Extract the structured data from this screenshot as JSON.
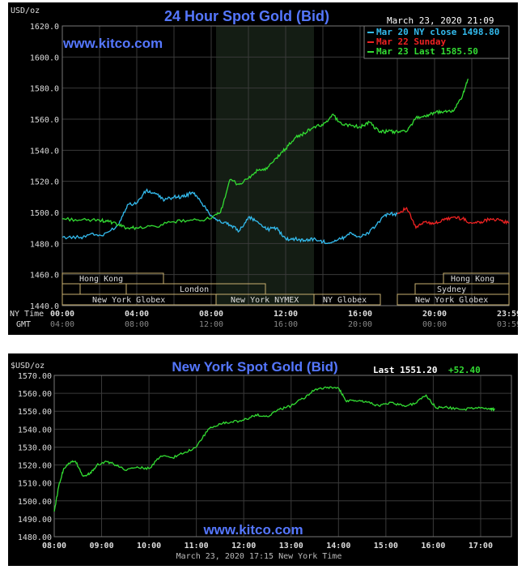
{
  "chart_data": [
    {
      "type": "line",
      "title": "24 Hour Spot Gold (Bid)",
      "unit_label": "USD/oz",
      "watermark": "www.kitco.com",
      "date_label": "March 23, 2020 21:09",
      "ylim": [
        1440,
        1620
      ],
      "y_ticks": [
        "1620.0",
        "1600.0",
        "1580.0",
        "1560.0",
        "1540.0",
        "1520.0",
        "1500.0",
        "1480.0",
        "1460.0",
        "1440.0"
      ],
      "x_ticks_ny": [
        "00:00",
        "04:00",
        "08:00",
        "12:00",
        "16:00",
        "20:00",
        "23:59"
      ],
      "x_ticks_gmt": [
        "04:00",
        "08:00",
        "12:00",
        "16:00",
        "20:00",
        "00:00",
        "03:59"
      ],
      "ny_time_label": "NY Time",
      "gmt_label": "GMT",
      "legend": [
        {
          "text": "Mar 20 NY close 1498.80",
          "color": "#33bbee"
        },
        {
          "text": "Mar 22 Sunday",
          "color": "#ee2222"
        },
        {
          "text": "Mar 23 Last 1585.50",
          "color": "#33dd33"
        }
      ],
      "sessions": [
        "Hong Kong",
        "London",
        "New York Globex",
        "New York NYMEX",
        "NY Globex",
        "Hong Kong",
        "Sydney",
        "New York Globex"
      ],
      "series": [
        {
          "name": "Mar 20 NY close 1498.80",
          "color": "#33bbee",
          "x": [
            0,
            1,
            1.5,
            2.2,
            3,
            3.5,
            4,
            4.5,
            5,
            5.5,
            6,
            6.5,
            7,
            7.5,
            8,
            8.5,
            9,
            9.5,
            10,
            10.5,
            11,
            11.5,
            12,
            12.5,
            13,
            13.5,
            14,
            14.5,
            15,
            15.5,
            16,
            16.5,
            17,
            17.5,
            18
          ],
          "values": [
            1484,
            1484,
            1486,
            1485,
            1492,
            1505,
            1506,
            1514,
            1512,
            1508,
            1510,
            1510,
            1513,
            1506,
            1498,
            1494,
            1492,
            1488,
            1497,
            1494,
            1489,
            1490,
            1483,
            1483,
            1482,
            1483,
            1481,
            1481,
            1483,
            1487,
            1484,
            1487,
            1494,
            1499,
            1499
          ]
        },
        {
          "name": "Mar 22 Sunday",
          "color": "#ee2222",
          "x": [
            18,
            18.5,
            19,
            19.5,
            20,
            20.5,
            21,
            21.5,
            22,
            22.5,
            23,
            23.5,
            24
          ],
          "values": [
            1499,
            1503,
            1490,
            1494,
            1493,
            1495,
            1497,
            1496,
            1493,
            1494,
            1496,
            1495,
            1493
          ]
        },
        {
          "name": "Mar 23 Last 1585.50",
          "color": "#33dd33",
          "x": [
            0,
            1,
            2,
            2.5,
            3,
            3.5,
            4,
            5,
            6,
            7,
            8,
            8.5,
            9,
            9.5,
            10,
            10.5,
            11,
            11.5,
            12,
            12.5,
            13,
            13.5,
            14,
            14.5,
            15,
            15.5,
            16,
            16.5,
            17,
            17.5,
            18,
            18.5,
            19,
            19.5,
            20,
            20.5,
            21,
            21.5,
            21.8
          ],
          "values": [
            1496,
            1495,
            1495,
            1494,
            1492,
            1490,
            1490,
            1491,
            1494,
            1495,
            1496,
            1500,
            1521,
            1518,
            1522,
            1527,
            1528,
            1535,
            1541,
            1548,
            1551,
            1555,
            1556,
            1563,
            1557,
            1556,
            1555,
            1558,
            1552,
            1552,
            1552,
            1552,
            1561,
            1562,
            1564,
            1565,
            1565,
            1575,
            1586
          ]
        }
      ]
    },
    {
      "type": "line",
      "title": "New York Spot Gold (Bid)",
      "unit_label": "$USD/oz",
      "watermark": "www.kitco.com",
      "last_label": "Last 1551.20",
      "change_label": "+52.40",
      "footer": "March 23, 2020 17:15 New York Time",
      "ylim": [
        1480,
        1570
      ],
      "y_ticks": [
        "1570.00",
        "1560.00",
        "1550.00",
        "1540.00",
        "1530.00",
        "1520.00",
        "1510.00",
        "1500.00",
        "1490.00",
        "1480.00"
      ],
      "x_ticks": [
        "08:00",
        "09:00",
        "10:00",
        "11:00",
        "12:00",
        "13:00",
        "14:00",
        "15:00",
        "16:00",
        "17:00"
      ],
      "series": [
        {
          "name": "",
          "color": "#33dd33",
          "x": [
            8.0,
            8.1,
            8.2,
            8.3,
            8.45,
            8.6,
            8.75,
            8.9,
            9.1,
            9.3,
            9.5,
            9.75,
            10.0,
            10.25,
            10.5,
            10.75,
            11.0,
            11.25,
            11.5,
            11.75,
            12.0,
            12.25,
            12.5,
            12.75,
            13.0,
            13.25,
            13.5,
            13.75,
            14.0,
            14.15,
            14.35,
            14.6,
            14.85,
            15.1,
            15.35,
            15.6,
            15.85,
            16.05,
            16.3,
            16.6,
            16.9,
            17.2,
            17.3
          ],
          "values": [
            1494,
            1509,
            1518,
            1521,
            1522,
            1514,
            1515,
            1520,
            1522,
            1520,
            1517,
            1519,
            1518,
            1525,
            1524,
            1527,
            1530,
            1540,
            1543,
            1544,
            1545,
            1548,
            1547,
            1551,
            1553,
            1557,
            1562,
            1563,
            1563,
            1556,
            1556,
            1555,
            1553,
            1555,
            1553,
            1554,
            1559,
            1552,
            1552,
            1551,
            1552,
            1551,
            1551
          ]
        }
      ]
    }
  ]
}
